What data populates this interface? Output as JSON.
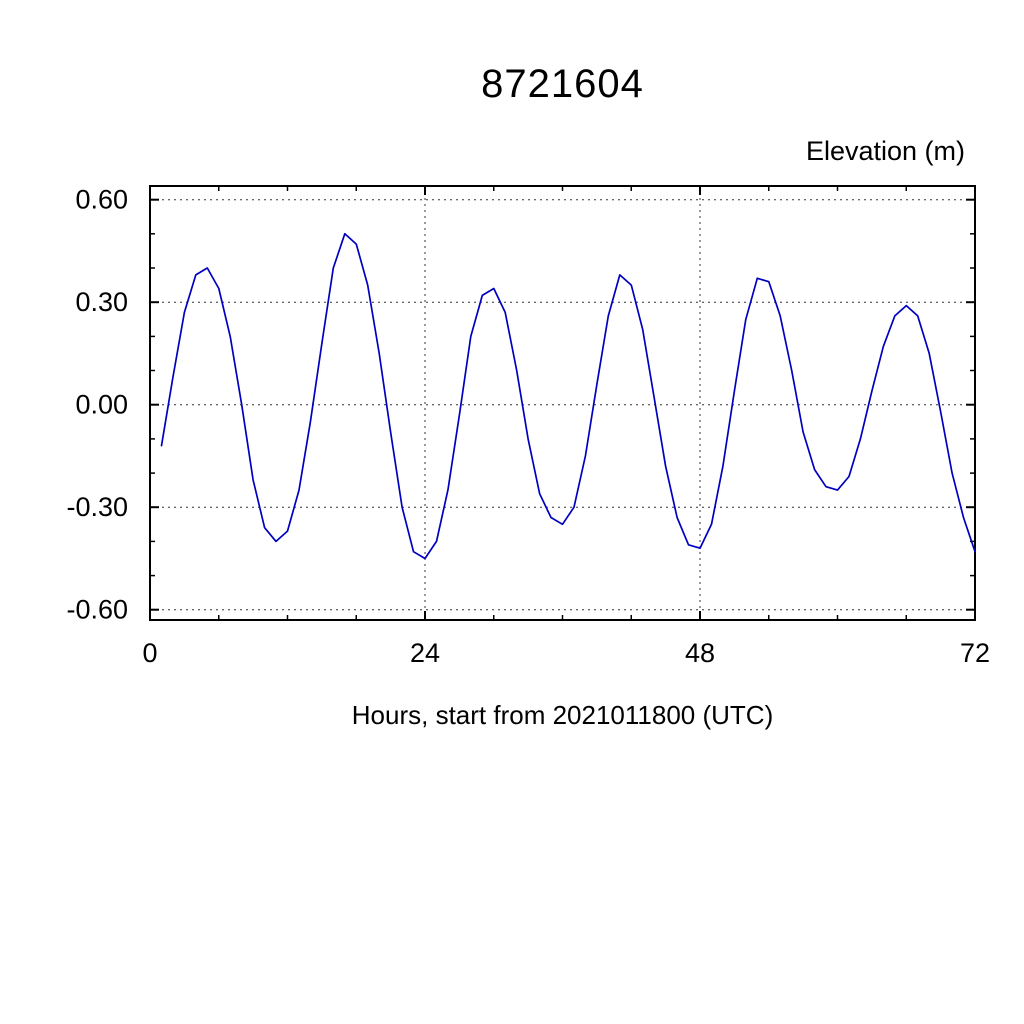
{
  "chart_data": {
    "type": "line",
    "title": "8721604",
    "right_label": "Elevation (m)",
    "xlabel": "Hours, start from 2021011800 (UTC)",
    "xlim": [
      0,
      72
    ],
    "ylim": [
      -0.6,
      0.6
    ],
    "x_ticks": [
      0,
      24,
      48,
      72
    ],
    "x_tick_labels": [
      "0",
      "24",
      "48",
      "72"
    ],
    "x_minor_step": 6,
    "x_grid": [
      24,
      48
    ],
    "y_ticks": [
      0.6,
      0.3,
      0.0,
      -0.3,
      -0.6
    ],
    "y_tick_labels": [
      "0.60",
      "0.30",
      "0.00",
      "-0.30",
      "-0.60"
    ],
    "grid_style": "dotted",
    "line_color": "#0000bf",
    "axis_color": "#000000",
    "series": [
      {
        "name": "elevation",
        "x": [
          1,
          2,
          3,
          4,
          5,
          6,
          7,
          8,
          9,
          10,
          11,
          12,
          13,
          14,
          15,
          16,
          17,
          18,
          19,
          20,
          21,
          22,
          23,
          24,
          25,
          26,
          27,
          28,
          29,
          30,
          31,
          32,
          33,
          34,
          35,
          36,
          37,
          38,
          39,
          40,
          41,
          42,
          43,
          44,
          45,
          46,
          47,
          48,
          49,
          50,
          51,
          52,
          53,
          54,
          55,
          56,
          57,
          58,
          59,
          60,
          61,
          62,
          63,
          64,
          65,
          66,
          67,
          68,
          69,
          70,
          71,
          72
        ],
        "y": [
          -0.12,
          0.08,
          0.27,
          0.38,
          0.4,
          0.34,
          0.2,
          0.0,
          -0.22,
          -0.36,
          -0.4,
          -0.37,
          -0.25,
          -0.05,
          0.18,
          0.4,
          0.5,
          0.47,
          0.35,
          0.15,
          -0.08,
          -0.3,
          -0.43,
          -0.45,
          -0.4,
          -0.25,
          -0.03,
          0.2,
          0.32,
          0.34,
          0.27,
          0.1,
          -0.1,
          -0.26,
          -0.33,
          -0.35,
          -0.3,
          -0.15,
          0.06,
          0.26,
          0.38,
          0.35,
          0.22,
          0.02,
          -0.18,
          -0.33,
          -0.41,
          -0.42,
          -0.35,
          -0.18,
          0.04,
          0.25,
          0.37,
          0.36,
          0.26,
          0.1,
          -0.08,
          -0.19,
          -0.24,
          -0.25,
          -0.21,
          -0.1,
          0.04,
          0.17,
          0.26,
          0.29,
          0.26,
          0.15,
          -0.02,
          -0.2,
          -0.33,
          -0.43
        ]
      }
    ]
  }
}
